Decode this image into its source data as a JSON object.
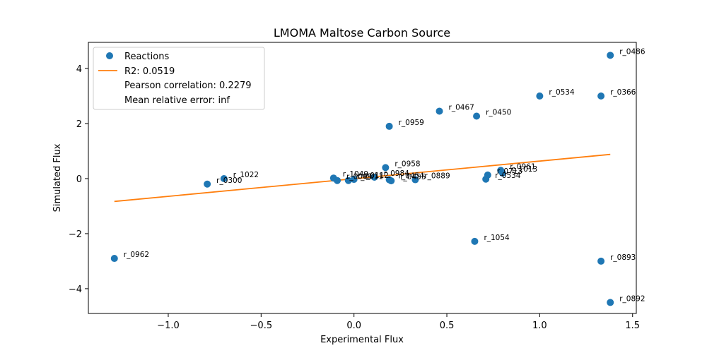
{
  "chart_data": {
    "type": "scatter",
    "title": "LMOMA Maltose Carbon Source",
    "xlabel": "Experimental Flux",
    "ylabel": "Simulated Flux",
    "xlim": [
      -1.43,
      1.52
    ],
    "ylim": [
      -4.9,
      4.95
    ],
    "xticks": [
      -1.0,
      -0.5,
      0.0,
      0.5,
      1.0,
      1.5
    ],
    "xtick_labels": [
      "−1.0",
      "−0.5",
      "0.0",
      "0.5",
      "1.0",
      "1.5"
    ],
    "yticks": [
      -4,
      -2,
      0,
      2,
      4
    ],
    "ytick_labels": [
      "−4",
      "−2",
      "0",
      "2",
      "4"
    ],
    "grid": false,
    "legend_position": "top-left",
    "colors": {
      "points": "#1f77b4",
      "fit_line": "#ff7f0e"
    },
    "series": [
      {
        "name": "Reactions",
        "kind": "points",
        "points": [
          {
            "x": -1.29,
            "y": -2.9,
            "label": "r_0962"
          },
          {
            "x": -0.79,
            "y": -0.2,
            "label": "r_0300"
          },
          {
            "x": -0.7,
            "y": 0.0,
            "label": "r_1022"
          },
          {
            "x": -0.11,
            "y": 0.02,
            "label": "r_1049"
          },
          {
            "x": -0.09,
            "y": -0.07,
            "label": "r_0009"
          },
          {
            "x": -0.03,
            "y": -0.07,
            "label": "r_0011"
          },
          {
            "x": 0.0,
            "y": -0.03,
            "label": "r_0112"
          },
          {
            "x": 0.11,
            "y": 0.05,
            "label": "r_0984"
          },
          {
            "x": 0.17,
            "y": 0.4,
            "label": "r_0958"
          },
          {
            "x": 0.19,
            "y": 1.9,
            "label": "r_0959"
          },
          {
            "x": 0.19,
            "y": -0.04,
            "label": "r_0454"
          },
          {
            "x": 0.2,
            "y": -0.08,
            "label": "r_0455"
          },
          {
            "x": 0.33,
            "y": -0.04,
            "label": "r_0889"
          },
          {
            "x": 0.46,
            "y": 2.45,
            "label": "r_0467"
          },
          {
            "x": 0.65,
            "y": -2.28,
            "label": "r_1054"
          },
          {
            "x": 0.66,
            "y": 2.27,
            "label": "r_0450"
          },
          {
            "x": 0.71,
            "y": -0.02,
            "label": "r_0534"
          },
          {
            "x": 0.72,
            "y": 0.13,
            "label": "r_0713"
          },
          {
            "x": 0.79,
            "y": 0.3,
            "label": "r_0961"
          },
          {
            "x": 0.8,
            "y": 0.2,
            "label": "r_1013"
          },
          {
            "x": 1.0,
            "y": 3.0,
            "label": "r_0534"
          },
          {
            "x": 1.33,
            "y": 3.0,
            "label": "r_0366"
          },
          {
            "x": 1.33,
            "y": -3.0,
            "label": "r_0893"
          },
          {
            "x": 1.38,
            "y": 4.48,
            "label": "r_0486"
          },
          {
            "x": 1.38,
            "y": -4.5,
            "label": "r_0892"
          }
        ]
      },
      {
        "name": "R2: 0.0519",
        "kind": "line",
        "x": [
          -1.29,
          1.38
        ],
        "y": [
          -0.83,
          0.88
        ]
      }
    ],
    "legend_extra": [
      "Pearson correlation: 0.2279",
      "Mean relative error: inf"
    ]
  }
}
